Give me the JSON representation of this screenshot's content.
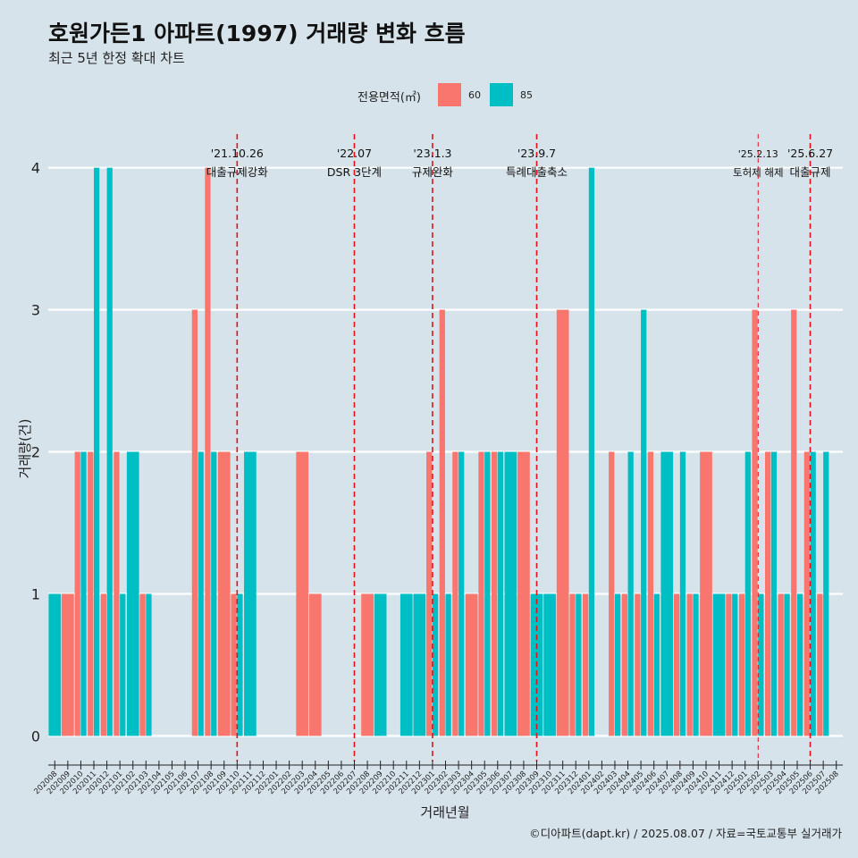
{
  "title": "호원가든1 아파트(1997) 거래량 변화 흐름",
  "subtitle": "최근 5년 한정 확대 차트",
  "caption": "©디아파트(dapt.kr) / 2025.08.07 / 자료=국토교통부 실거래가",
  "colors": {
    "background": "#d7e3ea",
    "series_60": "#f8766d",
    "series_85": "#00bfc4",
    "event_line": "#e8101a",
    "grid": "#ffffff"
  },
  "chart_data": {
    "type": "bar",
    "xlabel": "거래년월",
    "ylabel": "거래량(건)",
    "ylim": [
      -0.18,
      4.3
    ],
    "yticks": [
      0,
      1,
      2,
      3,
      4
    ],
    "grid": true,
    "legend": {
      "title": "전용면적(㎡)",
      "position": "top"
    },
    "categories": [
      "202008",
      "202009",
      "202010",
      "202011",
      "202012",
      "202101",
      "202102",
      "202103",
      "202104",
      "202105",
      "202106",
      "202107",
      "202108",
      "202109",
      "202110",
      "202111",
      "202112",
      "202201",
      "202202",
      "202203",
      "202204",
      "202205",
      "202206",
      "202207",
      "202208",
      "202209",
      "202210",
      "202211",
      "202212",
      "202301",
      "202302",
      "202303",
      "202304",
      "202305",
      "202306",
      "202307",
      "202308",
      "202309",
      "202310",
      "202311",
      "202312",
      "202401",
      "202402",
      "202403",
      "202404",
      "202405",
      "202406",
      "202407",
      "202408",
      "202409",
      "202410",
      "202411",
      "202412",
      "202501",
      "202502",
      "202503",
      "202504",
      "202505",
      "202506",
      "202507",
      "202508"
    ],
    "series": [
      {
        "name": "60",
        "values": [
          0,
          1,
          2,
          2,
          1,
          2,
          0,
          1,
          0,
          0,
          0,
          3,
          4,
          2,
          1,
          0,
          0,
          0,
          0,
          2,
          1,
          0,
          0,
          0,
          1,
          0,
          0,
          0,
          0,
          2,
          3,
          2,
          1,
          2,
          2,
          0,
          2,
          0,
          0,
          3,
          1,
          1,
          0,
          2,
          1,
          1,
          2,
          0,
          1,
          1,
          2,
          0,
          1,
          1,
          3,
          2,
          1,
          3,
          2,
          1,
          0
        ]
      },
      {
        "name": "85",
        "values": [
          1,
          0,
          2,
          4,
          4,
          1,
          2,
          1,
          0,
          0,
          0,
          2,
          2,
          0,
          1,
          2,
          0,
          0,
          0,
          0,
          0,
          0,
          0,
          0,
          0,
          1,
          0,
          1,
          1,
          1,
          1,
          2,
          0,
          2,
          2,
          2,
          0,
          1,
          1,
          0,
          1,
          4,
          0,
          1,
          2,
          3,
          1,
          2,
          2,
          1,
          0,
          1,
          1,
          2,
          1,
          2,
          1,
          1,
          2,
          2,
          0
        ]
      }
    ],
    "events": [
      {
        "date": "'21.10.26",
        "label": "대출규제강화",
        "at": "202110",
        "style": "dashed"
      },
      {
        "date": "'22.07",
        "label": "DSR 3단계",
        "at": "202207",
        "style": "dashed"
      },
      {
        "date": "'23.1.3",
        "label": "규제완화",
        "at": "202301",
        "style": "dashed"
      },
      {
        "date": "'23.9.7",
        "label": "특례대출축소",
        "at": "202309",
        "style": "dashed"
      },
      {
        "date": "'25.2.13",
        "label": "토허제 해제",
        "at": "202502",
        "style": "thin-dashed"
      },
      {
        "date": "'25.6.27",
        "label": "대출규제",
        "at": "202506",
        "style": "dashed"
      }
    ]
  }
}
